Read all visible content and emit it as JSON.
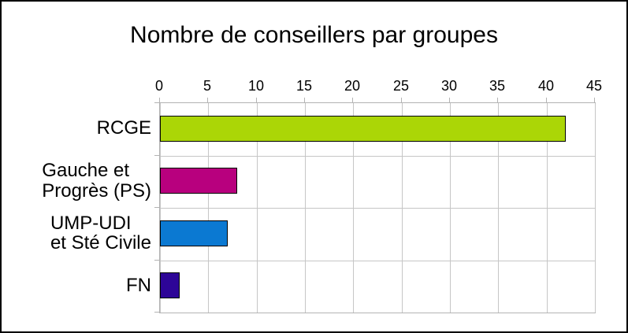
{
  "chart_data": {
    "type": "bar",
    "orientation": "horizontal",
    "title": "Nombre de conseillers par groupes",
    "categories": [
      "RCGE",
      "Gauche et Progrès (PS)",
      "UMP-UDI et Sté Civile",
      "FN"
    ],
    "category_label_lines": [
      [
        "RCGE"
      ],
      [
        "Gauche et",
        "Progrès (PS)"
      ],
      [
        "UMP-UDI",
        "et Sté Civile"
      ],
      [
        "FN"
      ]
    ],
    "values": [
      42,
      8,
      7,
      2
    ],
    "bar_colors": [
      "#abd606",
      "#b8007e",
      "#0b79d2",
      "#2d0597"
    ],
    "bar_border_color": "#000000",
    "xlabel": "",
    "ylabel": "",
    "xlim": [
      0,
      45
    ],
    "x_ticks": [
      0,
      5,
      10,
      15,
      20,
      25,
      30,
      35,
      40,
      45
    ],
    "grid": true,
    "gridline_color": "#c6c6c6",
    "plot_border_color": "#b3b3b3",
    "legend": "none",
    "background_color": "#ffffff"
  }
}
